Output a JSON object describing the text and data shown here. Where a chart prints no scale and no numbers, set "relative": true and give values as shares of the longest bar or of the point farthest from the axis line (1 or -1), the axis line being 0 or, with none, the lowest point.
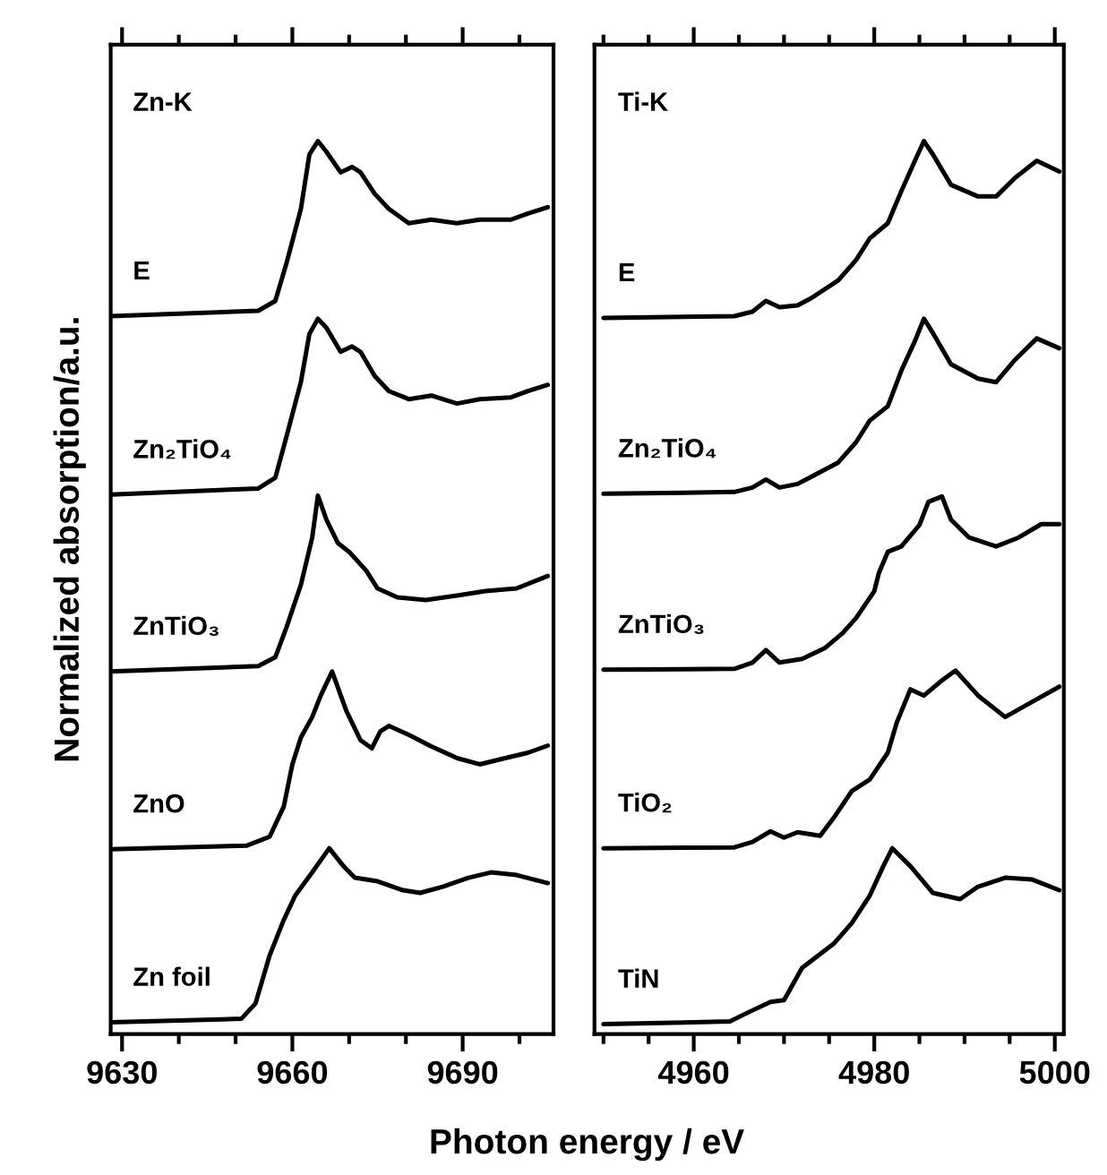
{
  "chart_data": [
    {
      "type": "line",
      "relative": true,
      "ylabel": "Normalized absorption/a.u.",
      "annotations": [
        "Zn-K"
      ],
      "tick_labels": "x",
      "legend": false,
      "grid": false,
      "marker": "none",
      "line_style": "solid",
      "xlim": [
        9628,
        9706
      ],
      "xticks": [
        9630,
        {
          "value": 9640,
          "label": null
        },
        {
          "value": 9650,
          "label": null
        },
        9660,
        {
          "value": 9670,
          "label": null
        },
        {
          "value": 9680,
          "label": null
        },
        9690,
        {
          "value": 9700,
          "label": null
        }
      ],
      "series": [
        {
          "name": "E",
          "color": "#000000",
          "x": [
            9628,
            9654,
            9657,
            9659,
            9661.5,
            9663,
            9664.5,
            9666,
            9668.5,
            9670.5,
            9672,
            9674.5,
            9677,
            9680.5,
            9684.5,
            9689,
            9693,
            9698.5,
            9701.5,
            9705
          ],
          "values": [
            0.804,
            0.81,
            0.821,
            0.864,
            0.924,
            0.985,
            1.0,
            0.988,
            0.965,
            0.971,
            0.965,
            0.941,
            0.924,
            0.908,
            0.912,
            0.908,
            0.912,
            0.912,
            0.919,
            0.926
          ]
        },
        {
          "name": "Zn₂TiO₄",
          "color": "#000000",
          "x": [
            9628,
            9654,
            9657,
            9659,
            9661.5,
            9663,
            9664.5,
            9666,
            9668.5,
            9670.5,
            9672,
            9674.5,
            9677,
            9680.5,
            9684.5,
            9689,
            9693,
            9698.5,
            9701.5,
            9705
          ],
          "values": [
            0.604,
            0.611,
            0.623,
            0.67,
            0.73,
            0.784,
            0.801,
            0.791,
            0.764,
            0.77,
            0.764,
            0.737,
            0.72,
            0.711,
            0.715,
            0.706,
            0.711,
            0.713,
            0.72,
            0.727
          ]
        },
        {
          "name": "ZnTiO₃",
          "color": "#000000",
          "x": [
            9628,
            9654,
            9657,
            9659,
            9661.5,
            9663.5,
            9664.5,
            9666,
            9668,
            9670,
            9673,
            9675,
            9678.5,
            9683.5,
            9689,
            9694,
            9699.5,
            9705
          ],
          "values": [
            0.406,
            0.412,
            0.422,
            0.456,
            0.503,
            0.556,
            0.603,
            0.576,
            0.55,
            0.54,
            0.519,
            0.499,
            0.489,
            0.486,
            0.491,
            0.496,
            0.499,
            0.513
          ]
        },
        {
          "name": "ZnO",
          "color": "#000000",
          "x": [
            9628,
            9652,
            9656,
            9658.5,
            9660,
            9661.5,
            9663.5,
            9665,
            9667,
            9669.5,
            9672,
            9674,
            9675.5,
            9677,
            9680.5,
            9684.5,
            9689,
            9693,
            9697.5,
            9701.5,
            9705
          ],
          "values": [
            0.207,
            0.211,
            0.221,
            0.255,
            0.302,
            0.332,
            0.355,
            0.379,
            0.406,
            0.362,
            0.329,
            0.32,
            0.339,
            0.345,
            0.335,
            0.322,
            0.309,
            0.302,
            0.309,
            0.315,
            0.323
          ]
        },
        {
          "name": "Zn foil",
          "color": "#000000",
          "x": [
            9628,
            9651,
            9653.5,
            9656,
            9658.5,
            9660.5,
            9663.5,
            9666.5,
            9669,
            9671,
            9675,
            9679.5,
            9682.5,
            9686.5,
            9691,
            9695,
            9699.5,
            9705
          ],
          "values": [
            0.013,
            0.017,
            0.034,
            0.088,
            0.128,
            0.155,
            0.181,
            0.208,
            0.188,
            0.175,
            0.171,
            0.161,
            0.158,
            0.165,
            0.175,
            0.181,
            0.178,
            0.169
          ]
        }
      ]
    },
    {
      "type": "line",
      "relative": true,
      "xlabel": "Photon energy / eV",
      "annotations": [
        "Ti-K"
      ],
      "tick_labels": "x",
      "legend": false,
      "grid": false,
      "marker": "none",
      "line_style": "solid",
      "xlim": [
        4949,
        5001
      ],
      "xticks": [
        {
          "value": 4950,
          "label": null
        },
        {
          "value": 4955,
          "label": null
        },
        4960,
        {
          "value": 4965,
          "label": null
        },
        {
          "value": 4970,
          "label": null
        },
        {
          "value": 4975,
          "label": null
        },
        4980,
        {
          "value": 4985,
          "label": null
        },
        {
          "value": 4990,
          "label": null
        },
        {
          "value": 4995,
          "label": null
        },
        5000
      ],
      "series": [
        {
          "name": "E",
          "color": "#000000",
          "x": [
            4950,
            4964.5,
            4966.5,
            4968,
            4969.5,
            4971.5,
            4973,
            4976,
            4978,
            4979.5,
            4981.5,
            4983,
            4984.5,
            4985.5,
            4986.5,
            4988.5,
            4991.5,
            4993.5,
            4995.5,
            4998,
            5000.5
          ],
          "values": [
            0.802,
            0.804,
            0.809,
            0.821,
            0.814,
            0.816,
            0.824,
            0.844,
            0.867,
            0.891,
            0.908,
            0.944,
            0.978,
            1.0,
            0.985,
            0.951,
            0.938,
            0.938,
            0.958,
            0.978,
            0.966
          ]
        },
        {
          "name": "Zn₂TiO₄",
          "color": "#000000",
          "x": [
            4950,
            4964.5,
            4966.5,
            4968,
            4969.5,
            4971.5,
            4973,
            4976,
            4978,
            4979.5,
            4981.5,
            4983,
            4984.5,
            4985.5,
            4986.5,
            4988.5,
            4991.5,
            4993.5,
            4995.5,
            4998,
            5000.5
          ],
          "values": [
            0.605,
            0.607,
            0.612,
            0.621,
            0.612,
            0.616,
            0.624,
            0.64,
            0.663,
            0.687,
            0.703,
            0.743,
            0.776,
            0.801,
            0.785,
            0.75,
            0.734,
            0.73,
            0.754,
            0.779,
            0.768
          ]
        },
        {
          "name": "ZnTiO₃",
          "color": "#000000",
          "x": [
            4950,
            4964.5,
            4966.5,
            4968,
            4969.5,
            4972,
            4974.5,
            4976.5,
            4978,
            4980,
            4980.5,
            4981.5,
            4983,
            4985,
            4986,
            4987.5,
            4988.5,
            4990.5,
            4993.5,
            4996,
            4998.5,
            5000.5
          ],
          "values": [
            0.408,
            0.409,
            0.416,
            0.43,
            0.416,
            0.42,
            0.432,
            0.449,
            0.466,
            0.496,
            0.516,
            0.54,
            0.546,
            0.57,
            0.596,
            0.602,
            0.576,
            0.556,
            0.546,
            0.556,
            0.571,
            0.571
          ]
        },
        {
          "name": "TiO₂",
          "color": "#000000",
          "x": [
            4950,
            4964.5,
            4966.5,
            4968.5,
            4970,
            4971.5,
            4974,
            4975.5,
            4977.5,
            4979.5,
            4981.5,
            4982.5,
            4984,
            4985.5,
            4987.5,
            4989,
            4991.5,
            4994.5,
            4997.5,
            5000.5
          ],
          "values": [
            0.208,
            0.209,
            0.215,
            0.227,
            0.22,
            0.226,
            0.222,
            0.242,
            0.272,
            0.285,
            0.315,
            0.349,
            0.386,
            0.379,
            0.396,
            0.407,
            0.379,
            0.355,
            0.372,
            0.389
          ]
        },
        {
          "name": "TiN",
          "color": "#000000",
          "x": [
            4950,
            4964,
            4966,
            4968.5,
            4970,
            4972,
            4975.5,
            4977.5,
            4979.5,
            4981,
            4982,
            4984,
            4986.5,
            4989.5,
            4991.5,
            4994.5,
            4997.5,
            5000.5
          ],
          "values": [
            0.011,
            0.014,
            0.024,
            0.036,
            0.038,
            0.074,
            0.101,
            0.124,
            0.155,
            0.188,
            0.208,
            0.188,
            0.158,
            0.151,
            0.165,
            0.175,
            0.173,
            0.161
          ]
        }
      ]
    }
  ]
}
